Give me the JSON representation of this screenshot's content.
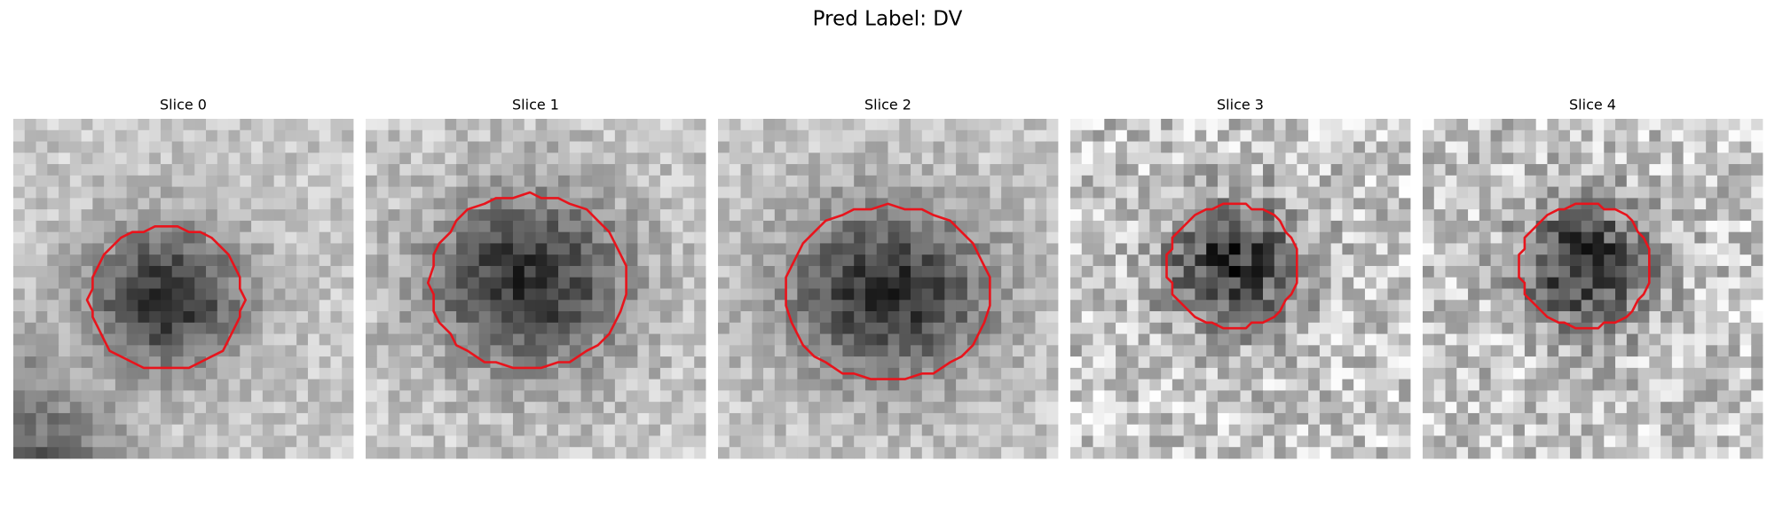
{
  "title": "Pred Label: DV",
  "panels": [
    {
      "title": "Slice 0"
    },
    {
      "title": "Slice 1"
    },
    {
      "title": "Slice 2"
    },
    {
      "title": "Slice 3"
    },
    {
      "title": "Slice 4"
    }
  ]
}
